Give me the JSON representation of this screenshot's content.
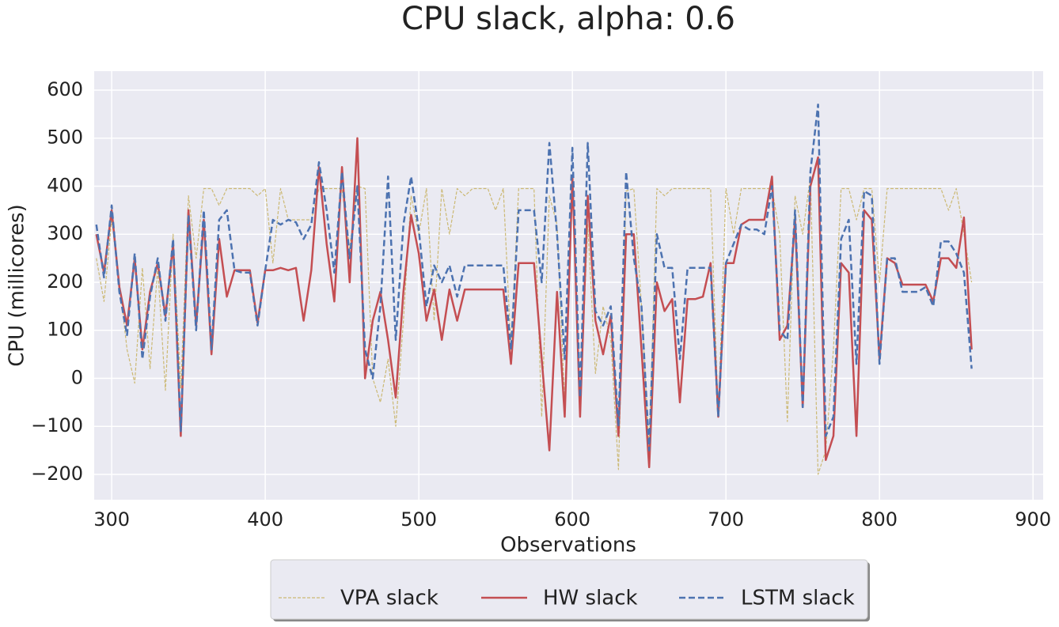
{
  "chart_data": {
    "type": "line",
    "title": "CPU slack, alpha: 0.6",
    "x_label": "Observations",
    "y_label": "CPU (millicores)",
    "xlim": [
      288.6,
      906.6
    ],
    "ylim": [
      -252.7,
      639.5
    ],
    "xticks": [
      300,
      400,
      500,
      600,
      700,
      800,
      900
    ],
    "yticks": [
      {
        "value": -200,
        "label": "−200"
      },
      {
        "value": -100,
        "label": "−100"
      },
      0,
      100,
      200,
      300,
      400,
      500,
      600
    ],
    "grid": true,
    "legend_position": "bottom",
    "x": [
      290,
      295,
      300,
      305,
      310,
      315,
      320,
      325,
      330,
      335,
      340,
      345,
      350,
      355,
      360,
      365,
      370,
      375,
      380,
      385,
      390,
      395,
      400,
      405,
      410,
      415,
      420,
      425,
      430,
      435,
      440,
      445,
      450,
      455,
      460,
      465,
      470,
      475,
      480,
      485,
      490,
      495,
      500,
      505,
      510,
      515,
      520,
      525,
      530,
      535,
      540,
      545,
      550,
      555,
      560,
      565,
      570,
      575,
      580,
      585,
      590,
      595,
      600,
      605,
      610,
      615,
      620,
      625,
      630,
      635,
      640,
      645,
      650,
      655,
      660,
      665,
      670,
      675,
      680,
      685,
      690,
      695,
      700,
      705,
      710,
      715,
      720,
      725,
      730,
      735,
      740,
      745,
      750,
      755,
      760,
      765,
      770,
      775,
      780,
      785,
      790,
      795,
      800,
      805,
      810,
      815,
      820,
      825,
      830,
      835,
      840,
      845,
      850,
      855,
      860
    ],
    "series": [
      {
        "name": "VPA slack",
        "color": "#ccb974",
        "linestyle": "dotted",
        "values": [
          250,
          160,
          330,
          200,
          60,
          -10,
          230,
          20,
          230,
          -25,
          300,
          -20,
          380,
          250,
          395,
          395,
          360,
          395,
          395,
          395,
          395,
          380,
          395,
          240,
          395,
          330,
          330,
          330,
          330,
          395,
          395,
          395,
          395,
          270,
          400,
          395,
          0,
          -50,
          40,
          -100,
          120,
          380,
          300,
          395,
          120,
          395,
          300,
          395,
          380,
          395,
          395,
          395,
          350,
          395,
          60,
          395,
          395,
          395,
          -80,
          380,
          320,
          -50,
          400,
          -70,
          320,
          10,
          150,
          80,
          -190,
          390,
          395,
          150,
          -150,
          395,
          380,
          395,
          395,
          395,
          395,
          395,
          395,
          -80,
          395,
          300,
          395,
          395,
          395,
          395,
          395,
          300,
          -90,
          380,
          300,
          420,
          -200,
          -150,
          60,
          395,
          395,
          330,
          395,
          395,
          200,
          395,
          395,
          395,
          395,
          395,
          395,
          395,
          395,
          350,
          395,
          300,
          200
        ]
      },
      {
        "name": "HW slack",
        "color": "#c44e52",
        "linestyle": "solid",
        "values": [
          300,
          220,
          350,
          190,
          110,
          250,
          60,
          180,
          240,
          130,
          280,
          -120,
          350,
          110,
          330,
          50,
          290,
          170,
          225,
          225,
          225,
          115,
          225,
          225,
          230,
          225,
          230,
          120,
          225,
          440,
          280,
          160,
          440,
          200,
          500,
          0,
          120,
          180,
          80,
          -40,
          180,
          340,
          260,
          120,
          185,
          80,
          185,
          120,
          185,
          185,
          185,
          185,
          185,
          185,
          30,
          240,
          240,
          240,
          40,
          -150,
          180,
          -80,
          420,
          -80,
          380,
          120,
          50,
          130,
          -120,
          300,
          300,
          60,
          -185,
          200,
          140,
          165,
          -50,
          165,
          165,
          170,
          240,
          -80,
          240,
          240,
          320,
          330,
          330,
          330,
          420,
          80,
          110,
          330,
          -60,
          400,
          460,
          -170,
          -120,
          240,
          220,
          -120,
          350,
          330,
          40,
          250,
          240,
          195,
          195,
          195,
          195,
          160,
          250,
          250,
          230,
          335,
          60
        ]
      },
      {
        "name": "LSTM slack",
        "color": "#4c72b0",
        "linestyle": "dashed",
        "values": [
          320,
          210,
          360,
          180,
          90,
          260,
          40,
          170,
          250,
          120,
          290,
          -110,
          340,
          100,
          350,
          60,
          330,
          350,
          225,
          220,
          220,
          110,
          225,
          330,
          320,
          330,
          325,
          290,
          320,
          450,
          350,
          220,
          430,
          250,
          400,
          60,
          0,
          150,
          420,
          80,
          320,
          420,
          310,
          150,
          235,
          200,
          235,
          170,
          235,
          235,
          235,
          235,
          235,
          235,
          60,
          350,
          350,
          350,
          200,
          490,
          300,
          40,
          480,
          -40,
          490,
          140,
          110,
          150,
          -100,
          430,
          250,
          150,
          -150,
          300,
          230,
          230,
          40,
          230,
          230,
          230,
          230,
          -80,
          240,
          280,
          320,
          310,
          310,
          300,
          400,
          100,
          80,
          350,
          -60,
          430,
          570,
          -120,
          -80,
          290,
          330,
          30,
          390,
          380,
          30,
          250,
          250,
          180,
          180,
          180,
          190,
          150,
          285,
          285,
          260,
          220,
          20
        ]
      }
    ]
  }
}
